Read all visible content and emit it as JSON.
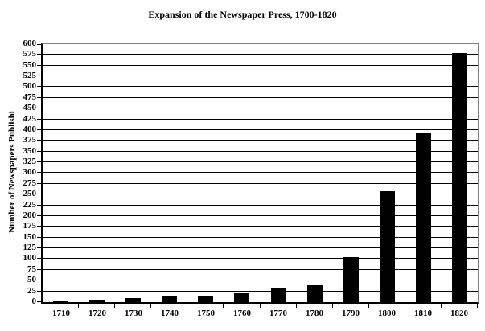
{
  "title": "Expansion of the Newspaper Press, 1700-1820",
  "chart_data": {
    "type": "bar",
    "title": "Expansion of the Newspaper Press, 1700-1820",
    "categories": [
      "1710",
      "1720",
      "1730",
      "1740",
      "1750",
      "1760",
      "1770",
      "1780",
      "1790",
      "1800",
      "1810",
      "1820"
    ],
    "values": [
      1,
      4,
      10,
      15,
      14,
      20,
      31,
      39,
      105,
      258,
      394,
      580
    ],
    "xlabel": "",
    "ylabel": "Number of Newspapers Publishi",
    "ylim": [
      0,
      600
    ],
    "ytick_step": 25,
    "grid": true,
    "legend": "none",
    "bar_color": "#000000",
    "gridline_color": "#000000",
    "axis_color": "#000000",
    "plot_border_color": "#808080",
    "background_color": "#ffffff"
  }
}
